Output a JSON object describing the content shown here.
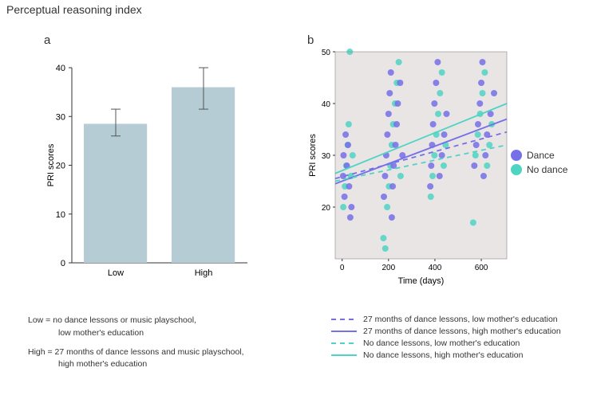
{
  "title": "Perceptual reasoning index",
  "panel_a": {
    "label": "a",
    "type": "bar",
    "categories": [
      "Low",
      "High"
    ],
    "values": [
      28.5,
      36
    ],
    "errors": [
      [
        26,
        31.5
      ],
      [
        31.5,
        40
      ]
    ],
    "ylabel": "PRI scores",
    "ylim": [
      0,
      40
    ],
    "yticks": [
      0,
      10,
      20,
      30,
      40
    ],
    "bar_color": "#b5ccd4",
    "error_color": "#555555",
    "axis_color": "#333333",
    "bar_width": 0.4
  },
  "footnote_a": {
    "line1a": "Low = no dance lessons or music playschool,",
    "line1b": "low mother's education",
    "line2a": "High = 27 months of dance lessons and music playschool,",
    "line2b": "high mother's education"
  },
  "panel_b": {
    "label": "b",
    "type": "scatter+line",
    "background_color": "#e9e5e5",
    "xlabel": "Time (days)",
    "ylabel": "PRI scores",
    "xlim": [
      -30,
      710
    ],
    "xticks": [
      0,
      200,
      400,
      600
    ],
    "ylim": [
      10,
      50
    ],
    "yticks": [
      20,
      30,
      40,
      50
    ],
    "scatter_colors": {
      "dance": "#7570e8",
      "no_dance": "#4fd4c4"
    },
    "scatter_alpha": 0.85,
    "marker_size": 4,
    "legend_right": [
      {
        "label": "Dance",
        "color": "#7570e8"
      },
      {
        "label": "No dance",
        "color": "#4fd4c4"
      }
    ],
    "lines": [
      {
        "id": "dance_low",
        "label": "27 months of dance lessons, low mother's education",
        "color": "#7570e8",
        "dash": "6,5",
        "y0": 25.5,
        "y1": 34.5
      },
      {
        "id": "dance_high",
        "label": "27 months of dance lessons, high mother's education",
        "color": "#7570e8",
        "dash": "",
        "y0": 24.5,
        "y1": 37
      },
      {
        "id": "nodance_low",
        "label": "No dance lessons, low mother's education",
        "color": "#4fd4c4",
        "dash": "6,5",
        "y0": 25,
        "y1": 32
      },
      {
        "id": "nodance_high",
        "label": "No dance lessons, high mother's education",
        "color": "#4fd4c4",
        "dash": "",
        "y0": 26.5,
        "y1": 40
      }
    ],
    "line_width": 1.8,
    "scatter": {
      "dance_x": [
        4,
        6,
        10,
        15,
        20,
        25,
        30,
        35,
        40,
        180,
        185,
        190,
        195,
        200,
        205,
        210,
        214,
        218,
        222,
        230,
        235,
        240,
        250,
        260,
        380,
        384,
        388,
        392,
        398,
        405,
        412,
        420,
        430,
        440,
        450,
        570,
        578,
        586,
        594,
        600,
        605,
        610,
        618,
        625,
        640,
        655
      ],
      "dance_y": [
        26,
        30,
        22,
        34,
        28,
        32,
        24,
        18,
        20,
        22,
        26,
        30,
        34,
        38,
        42,
        46,
        18,
        24,
        28,
        32,
        36,
        40,
        44,
        30,
        24,
        28,
        32,
        36,
        40,
        44,
        48,
        26,
        30,
        34,
        38,
        28,
        32,
        36,
        40,
        44,
        48,
        26,
        30,
        34,
        38,
        42
      ],
      "nodance_x": [
        5,
        12,
        18,
        24,
        28,
        33,
        38,
        45,
        178,
        186,
        194,
        202,
        208,
        214,
        220,
        228,
        236,
        244,
        252,
        382,
        390,
        398,
        406,
        414,
        422,
        430,
        438,
        446,
        565,
        575,
        585,
        595,
        605,
        615,
        625,
        635,
        645
      ],
      "nodance_y": [
        20,
        24,
        28,
        32,
        36,
        50,
        26,
        30,
        14,
        12,
        20,
        24,
        28,
        32,
        36,
        40,
        44,
        48,
        26,
        22,
        26,
        30,
        34,
        38,
        42,
        46,
        28,
        32,
        17,
        30,
        34,
        38,
        42,
        46,
        28,
        32,
        36
      ]
    }
  }
}
